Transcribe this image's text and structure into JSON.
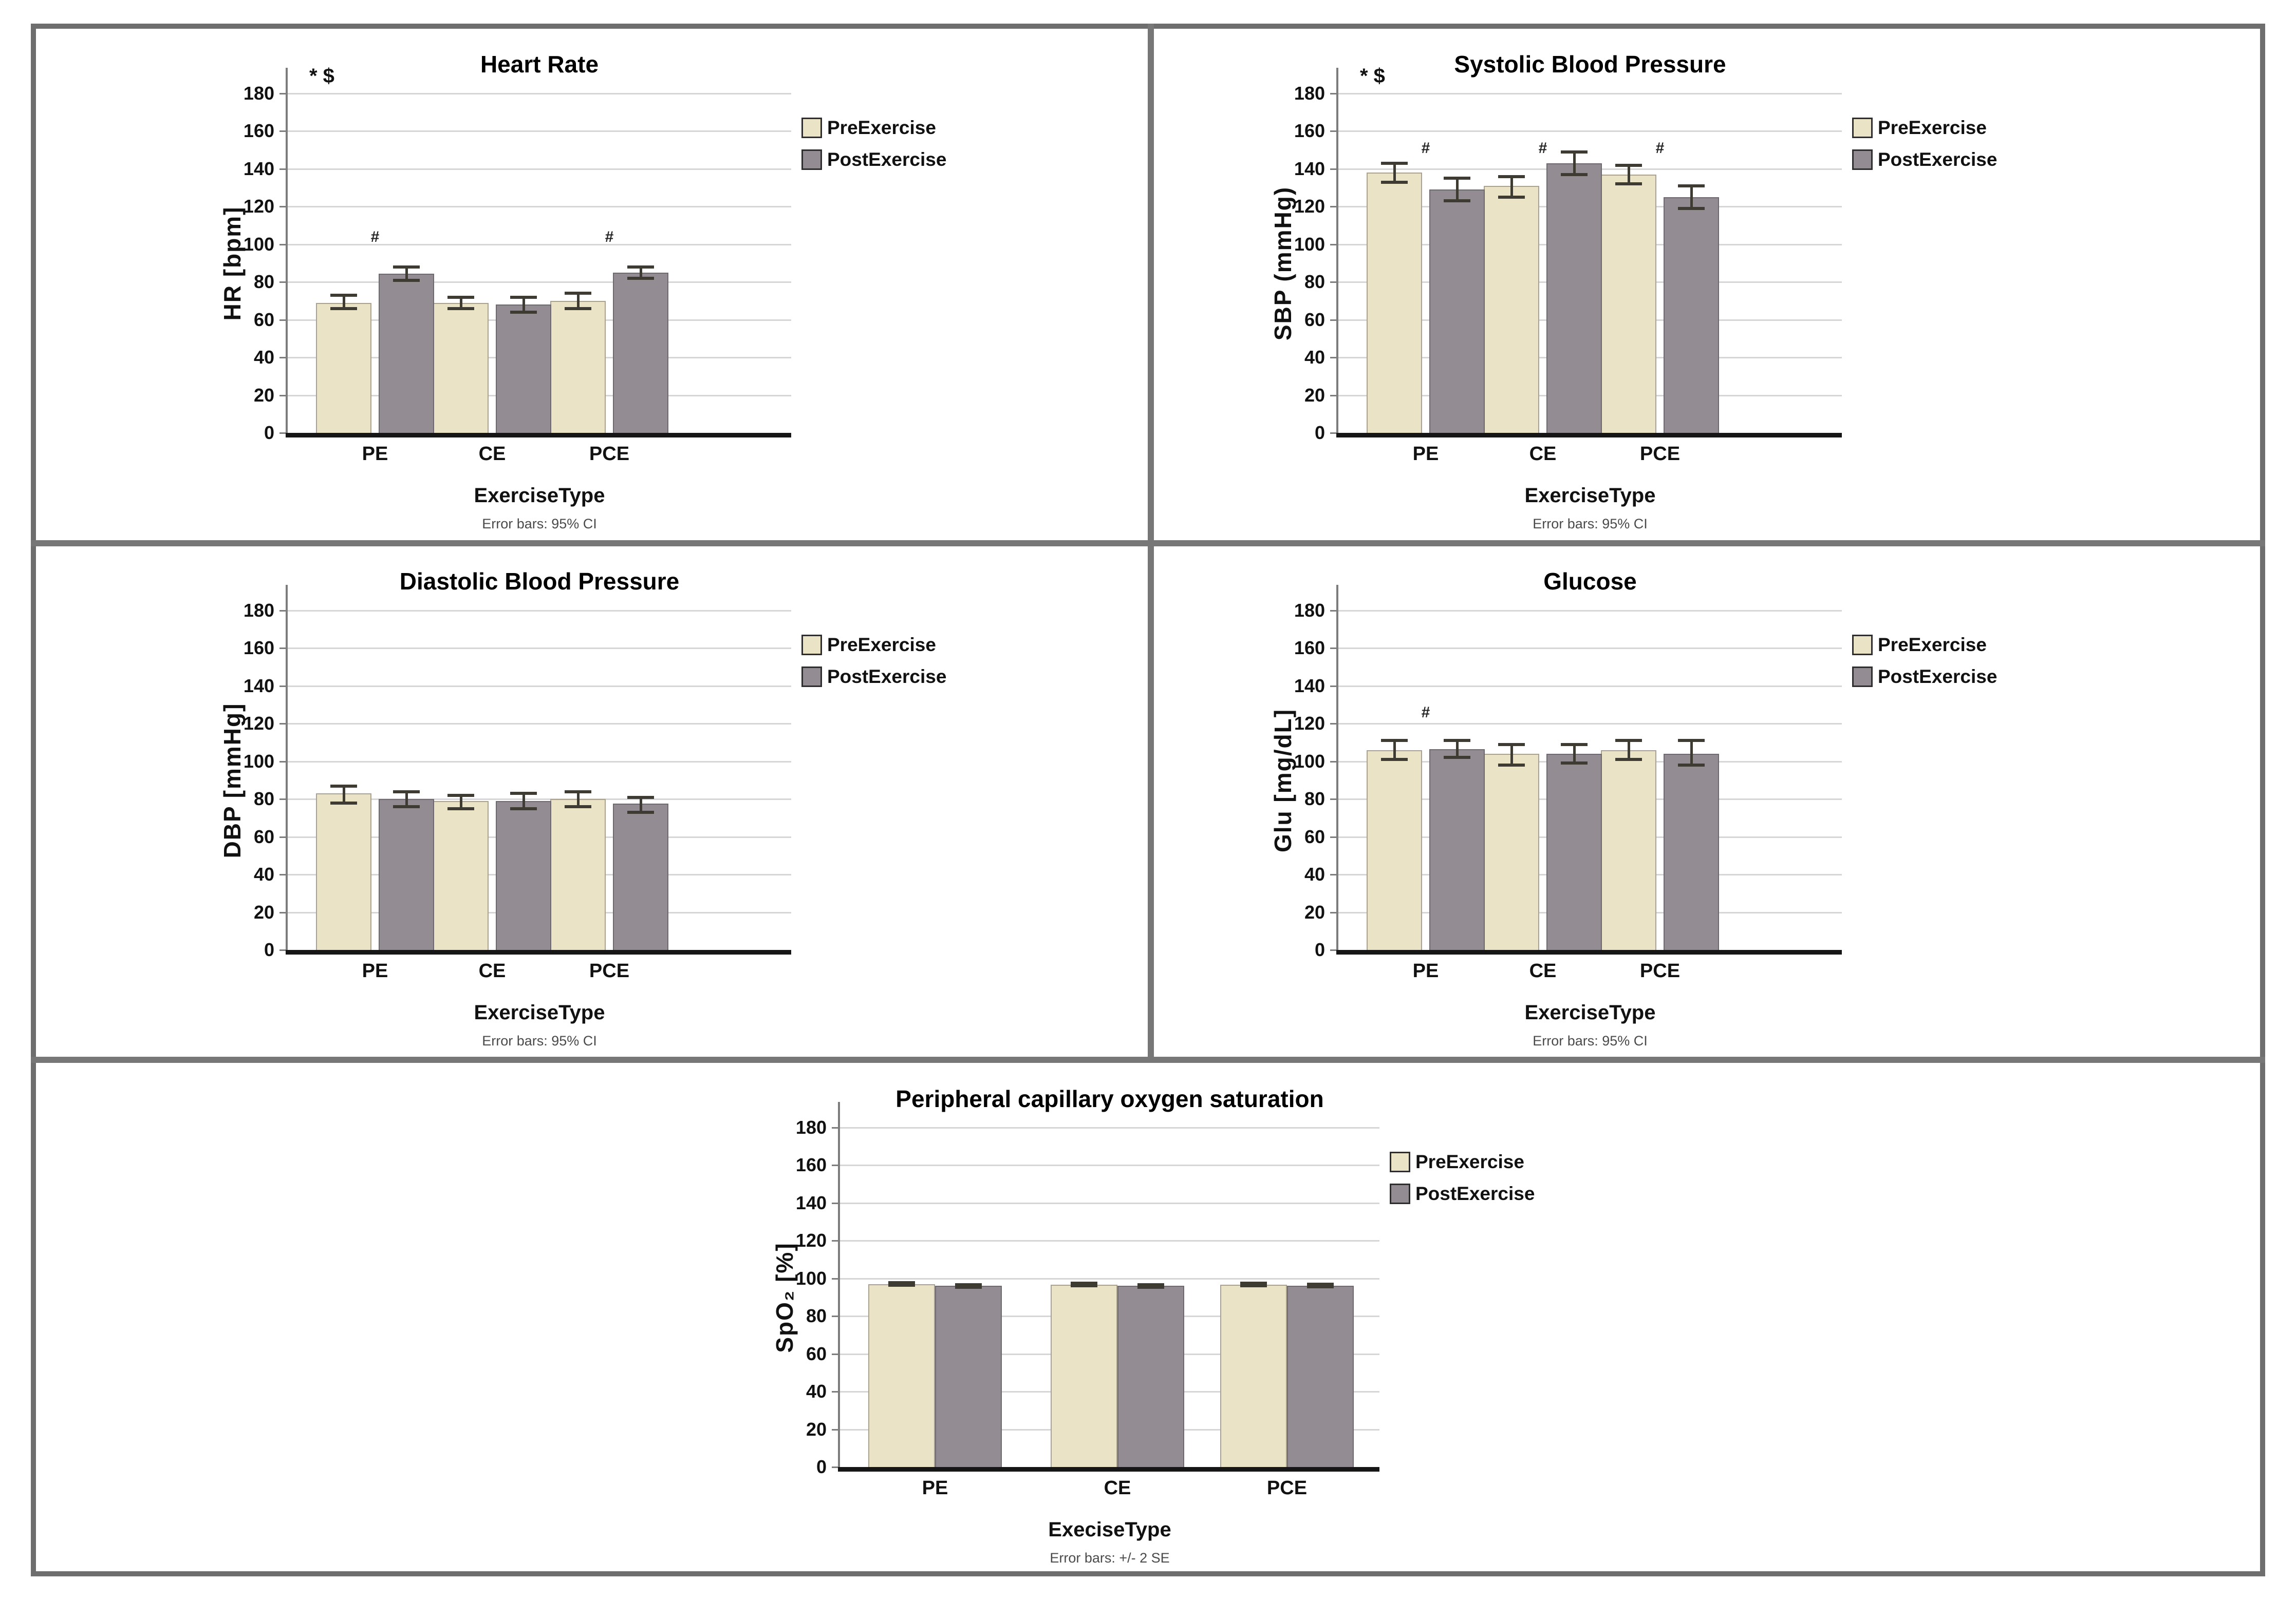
{
  "colors": {
    "pre_fill": "#EAE3C6",
    "pre_border": "#A9A292",
    "post_fill": "#938D93",
    "post_border": "#6E696E",
    "error_bar": "#3E3B33",
    "gridline": "#D6D6D6",
    "x_axis": "#161616",
    "y_axis": "#7D7D7D",
    "divider": "#777777",
    "frame": "#6E6E6E",
    "title_text": "#000000",
    "footnote_text": "#4A4A4A"
  },
  "chart_data": [
    {
      "type": "bar",
      "title": "Heart Rate",
      "ylabel": "HR [bpm]",
      "xlabel": "ExerciseType",
      "footnote": "Error bars: 95% CI",
      "annotation": "* $",
      "categories": [
        "PE",
        "CE",
        "PCE"
      ],
      "yticks": [
        "0",
        "20",
        "40",
        "60",
        "80",
        "100",
        "120",
        "140",
        "160",
        "180"
      ],
      "ylim": [
        0,
        190
      ],
      "grid": true,
      "legend_position": "right-outside-top",
      "series": [
        {
          "name": "PreExercise",
          "values": [
            69,
            69,
            70
          ],
          "ci_low": [
            66,
            66,
            66
          ],
          "ci_high": [
            73,
            72,
            74
          ]
        },
        {
          "name": "PostExercise",
          "values": [
            84.5,
            68,
            85
          ],
          "ci_low": [
            81,
            64,
            82
          ],
          "ci_high": [
            88,
            72,
            88
          ]
        }
      ],
      "sig_marks": [
        {
          "symbol": "#",
          "category": "PE",
          "y": 104
        },
        {
          "symbol": "#",
          "category": "PCE",
          "y": 104
        }
      ]
    },
    {
      "type": "bar",
      "title": "Systolic Blood Pressure",
      "ylabel": "SBP (mmHg)",
      "xlabel": "ExerciseType",
      "footnote": "Error bars: 95% CI",
      "annotation": "* $",
      "categories": [
        "PE",
        "CE",
        "PCE"
      ],
      "yticks": [
        "0",
        "20",
        "40",
        "60",
        "80",
        "100",
        "120",
        "140",
        "160",
        "180"
      ],
      "ylim": [
        0,
        190
      ],
      "grid": true,
      "legend_position": "right-outside-top",
      "series": [
        {
          "name": "PreExercise",
          "values": [
            138,
            131,
            137
          ],
          "ci_low": [
            133,
            125,
            132
          ],
          "ci_high": [
            143,
            136,
            142
          ]
        },
        {
          "name": "PostExercise",
          "values": [
            129,
            143,
            125
          ],
          "ci_low": [
            123,
            137,
            119
          ],
          "ci_high": [
            135,
            149,
            131
          ]
        }
      ],
      "sig_marks": [
        {
          "symbol": "#",
          "category": "PE",
          "y": 151
        },
        {
          "symbol": "#",
          "category": "CE",
          "y": 151
        },
        {
          "symbol": "#",
          "category": "PCE",
          "y": 151
        }
      ]
    },
    {
      "type": "bar",
      "title": "Diastolic Blood Pressure",
      "ylabel": "DBP [mmHg]",
      "xlabel": "ExerciseType",
      "footnote": "Error bars: 95% CI",
      "annotation": "",
      "categories": [
        "PE",
        "CE",
        "PCE"
      ],
      "yticks": [
        "0",
        "20",
        "40",
        "60",
        "80",
        "100",
        "120",
        "140",
        "160",
        "180"
      ],
      "ylim": [
        0,
        190
      ],
      "grid": true,
      "legend_position": "right-outside-top",
      "series": [
        {
          "name": "PreExercise",
          "values": [
            83,
            79,
            80
          ],
          "ci_low": [
            78,
            75,
            76
          ],
          "ci_high": [
            87,
            82,
            84
          ]
        },
        {
          "name": "PostExercise",
          "values": [
            80,
            79,
            77.5
          ],
          "ci_low": [
            76,
            75,
            73
          ],
          "ci_high": [
            84,
            83,
            81
          ]
        }
      ],
      "sig_marks": []
    },
    {
      "type": "bar",
      "title": "Glucose",
      "ylabel": "Glu [mg/dL]",
      "xlabel": "ExerciseType",
      "footnote": "Error bars: 95% CI",
      "annotation": "",
      "categories": [
        "PE",
        "CE",
        "PCE"
      ],
      "yticks": [
        "0",
        "20",
        "40",
        "60",
        "80",
        "100",
        "120",
        "140",
        "160",
        "180"
      ],
      "ylim": [
        0,
        190
      ],
      "grid": true,
      "legend_position": "right-outside-top",
      "series": [
        {
          "name": "PreExercise",
          "values": [
            106,
            104,
            106
          ],
          "ci_low": [
            101,
            98,
            101
          ],
          "ci_high": [
            111,
            109,
            111
          ]
        },
        {
          "name": "PostExercise",
          "values": [
            106.5,
            104,
            104
          ],
          "ci_low": [
            102,
            99,
            98
          ],
          "ci_high": [
            111,
            109,
            111
          ]
        }
      ],
      "sig_marks": [
        {
          "symbol": "#",
          "category": "PE",
          "y": 126
        }
      ]
    },
    {
      "type": "bar",
      "title": "Peripheral capillary oxygen saturation",
      "ylabel": "SpO₂ [%]",
      "xlabel": "ExeciseType",
      "footnote": "Error bars: +/- 2 SE",
      "annotation": "",
      "categories": [
        "PE",
        "CE",
        "PCE"
      ],
      "yticks": [
        "0",
        "20",
        "40",
        "60",
        "80",
        "100",
        "120",
        "140",
        "160",
        "180"
      ],
      "ylim": [
        0,
        190
      ],
      "grid": true,
      "legend_position": "right-outside-top",
      "series": [
        {
          "name": "PreExercise",
          "values": [
            97,
            96.8,
            96.8
          ],
          "ci_low": [
            96.3,
            96.1,
            96.1
          ],
          "ci_high": [
            97.7,
            97.5,
            97.5
          ]
        },
        {
          "name": "PostExercise",
          "values": [
            96,
            96,
            96.2
          ],
          "ci_low": [
            95.3,
            95.3,
            95.5
          ],
          "ci_high": [
            96.7,
            96.7,
            96.9
          ]
        }
      ],
      "sig_marks": []
    }
  ]
}
